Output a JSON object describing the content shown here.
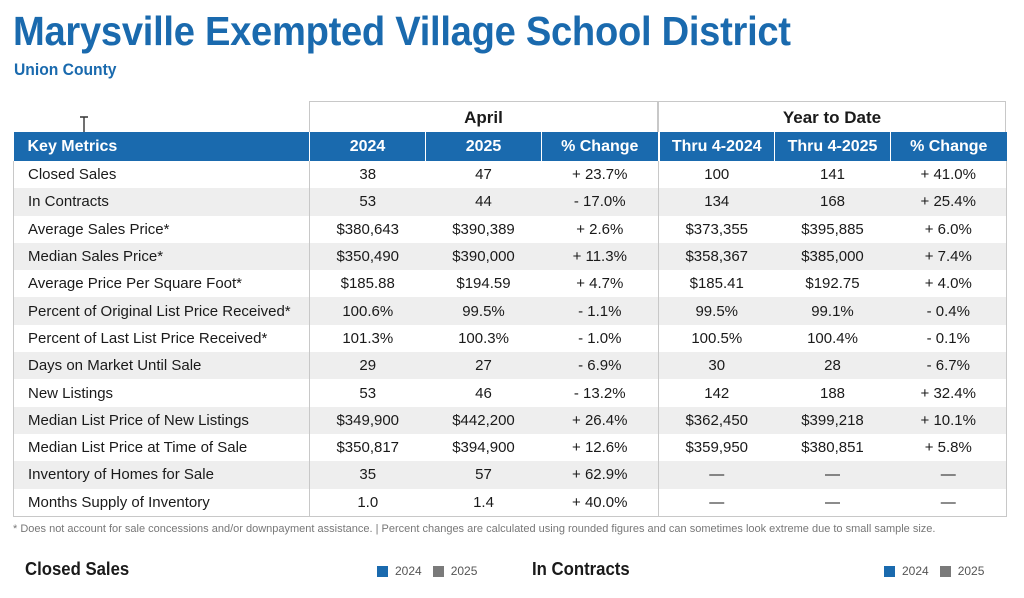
{
  "header": {
    "title": "Marysville Exempted Village School District",
    "subtitle": "Union County"
  },
  "groups": {
    "april": "April",
    "ytd": "Year to Date"
  },
  "columns": [
    "Key Metrics",
    "2024",
    "2025",
    "% Change",
    "Thru 4-2024",
    "Thru 4-2025",
    "% Change"
  ],
  "rows": [
    [
      "Closed Sales",
      "38",
      "47",
      "+ 23.7%",
      "100",
      "141",
      "+ 41.0%"
    ],
    [
      "In Contracts",
      "53",
      "44",
      "- 17.0%",
      "134",
      "168",
      "+ 25.4%"
    ],
    [
      "Average Sales Price*",
      "$380,643",
      "$390,389",
      "+ 2.6%",
      "$373,355",
      "$395,885",
      "+ 6.0%"
    ],
    [
      "Median Sales Price*",
      "$350,490",
      "$390,000",
      "+ 11.3%",
      "$358,367",
      "$385,000",
      "+ 7.4%"
    ],
    [
      "Average Price Per Square Foot*",
      "$185.88",
      "$194.59",
      "+ 4.7%",
      "$185.41",
      "$192.75",
      "+ 4.0%"
    ],
    [
      "Percent of Original List Price Received*",
      "100.6%",
      "99.5%",
      "- 1.1%",
      "99.5%",
      "99.1%",
      "- 0.4%"
    ],
    [
      "Percent of Last List Price Received*",
      "101.3%",
      "100.3%",
      "- 1.0%",
      "100.5%",
      "100.4%",
      "- 0.1%"
    ],
    [
      "Days on Market Until Sale",
      "29",
      "27",
      "- 6.9%",
      "30",
      "28",
      "- 6.7%"
    ],
    [
      "New Listings",
      "53",
      "46",
      "- 13.2%",
      "142",
      "188",
      "+ 32.4%"
    ],
    [
      "Median List Price of New Listings",
      "$349,900",
      "$442,200",
      "+ 26.4%",
      "$362,450",
      "$399,218",
      "+ 10.1%"
    ],
    [
      "Median List Price at Time of Sale",
      "$350,817",
      "$394,900",
      "+ 12.6%",
      "$359,950",
      "$380,851",
      "+ 5.8%"
    ],
    [
      "Inventory of Homes for Sale",
      "35",
      "57",
      "+ 62.9%",
      "—",
      "—",
      "—"
    ],
    [
      "Months Supply of Inventory",
      "1.0",
      "1.4",
      "+ 40.0%",
      "—",
      "—",
      "—"
    ]
  ],
  "footnote": "* Does not account for sale concessions and/or downpayment assistance. | Percent changes are calculated using rounded figures and can sometimes look extreme due to small sample size.",
  "sections": [
    {
      "title": "Closed Sales",
      "legend": [
        {
          "label": "2024",
          "color": "#1a6aae"
        },
        {
          "label": "2025",
          "color": "#7a7a7a"
        }
      ]
    },
    {
      "title": "In Contracts",
      "legend": [
        {
          "label": "2024",
          "color": "#1a6aae"
        },
        {
          "label": "2025",
          "color": "#7a7a7a"
        }
      ]
    }
  ],
  "colors": {
    "brand": "#1a6aae",
    "row_alt": "#eeeeee",
    "series_2025": "#7a7a7a"
  }
}
